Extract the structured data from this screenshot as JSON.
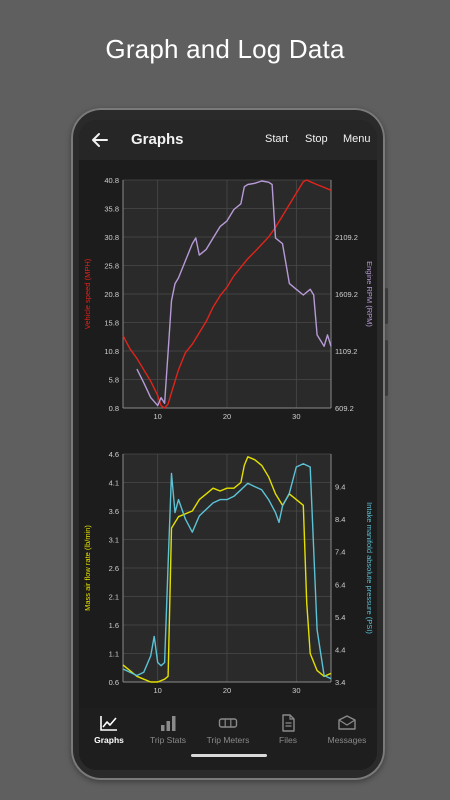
{
  "promo": {
    "title": "Graph and Log Data"
  },
  "appbar": {
    "title": "Graphs",
    "actions": [
      "Start",
      "Stop",
      "Menu"
    ]
  },
  "nav": {
    "items": [
      {
        "label": "Graphs",
        "icon": "line-graph-icon",
        "active": true
      },
      {
        "label": "Trip Stats",
        "icon": "bar-chart-icon",
        "active": false
      },
      {
        "label": "Trip Meters",
        "icon": "odometer-icon",
        "active": false
      },
      {
        "label": "Files",
        "icon": "file-icon",
        "active": false
      },
      {
        "label": "Messages",
        "icon": "message-icon",
        "active": false
      }
    ]
  },
  "colors": {
    "speed": "#e0241b",
    "rpm": "#b79ad6",
    "maf": "#e3e000",
    "map": "#5cc2d6",
    "grid": "#4a4a4a",
    "plot_bg": "#2a2a2a"
  },
  "chart_data": [
    {
      "type": "line",
      "x_ticks": [
        10,
        20,
        30
      ],
      "xlim": [
        5,
        35
      ],
      "grid": true,
      "y_left": {
        "label": "Vehicle speed (MPH)",
        "ticks": [
          "40.8",
          "35.8",
          "30.8",
          "25.8",
          "20.8",
          "15.8",
          "10.8",
          "5.8",
          "0.8"
        ],
        "range": [
          0.8,
          40.8
        ]
      },
      "y_right": {
        "label": "Engine RPM (RPM)",
        "ticks": [
          "2109.2",
          "1609.2",
          "1109.2",
          "609.2"
        ],
        "range": [
          609.2,
          2609.2
        ]
      },
      "series": [
        {
          "name": "Vehicle speed (MPH)",
          "axis": "left",
          "x": [
            5,
            6,
            7,
            8,
            9,
            10,
            10.5,
            11,
            11.5,
            12,
            13,
            14,
            15,
            16,
            17,
            18,
            19,
            20,
            21,
            22,
            23,
            24,
            25,
            26,
            27,
            28,
            29,
            30,
            31,
            31.5,
            32,
            33,
            34,
            35
          ],
          "y": [
            13.5,
            11.2,
            9.5,
            7.5,
            5.5,
            3.0,
            1.2,
            0.8,
            1.5,
            3.5,
            7.5,
            10.5,
            12.0,
            14.0,
            16.0,
            18.5,
            20.5,
            22.0,
            24.0,
            25.5,
            27.0,
            28.2,
            29.5,
            30.8,
            32.5,
            34.5,
            36.5,
            38.5,
            40.5,
            40.8,
            40.5,
            40.0,
            39.5,
            39.0
          ]
        },
        {
          "name": "Engine RPM (RPM)",
          "axis": "right",
          "x": [
            7,
            8,
            9,
            10,
            10.5,
            11,
            11.5,
            12,
            12.5,
            13,
            14,
            15,
            15.5,
            16,
            17,
            18,
            19,
            20,
            21,
            22,
            22.5,
            23,
            24,
            25,
            26,
            26.5,
            27,
            28,
            29,
            30,
            31,
            32,
            32.5,
            33,
            34,
            34.5,
            35
          ],
          "y": [
            950,
            830,
            700,
            630,
            700,
            650,
            1100,
            1550,
            1700,
            1750,
            1900,
            2050,
            2100,
            1950,
            2000,
            2100,
            2200,
            2250,
            2350,
            2400,
            2550,
            2570,
            2580,
            2600,
            2590,
            2570,
            2100,
            2050,
            1700,
            1650,
            1600,
            1650,
            1600,
            1250,
            1150,
            1250,
            1150
          ]
        }
      ]
    },
    {
      "type": "line",
      "x_ticks": [
        10,
        20,
        30
      ],
      "xlim": [
        5,
        35
      ],
      "grid": true,
      "y_left": {
        "label": "Mass air flow rate (lb/min)",
        "ticks": [
          "4.6",
          "4.1",
          "3.6",
          "3.1",
          "2.6",
          "2.1",
          "1.6",
          "1.1",
          "0.6"
        ],
        "range": [
          0.6,
          4.6
        ]
      },
      "y_right": {
        "label": "Intake manifold absolute pressure (PSI)",
        "ticks": [
          "9.4",
          "8.4",
          "7.4",
          "6.4",
          "5.4",
          "4.4",
          "3.4"
        ],
        "range": [
          3.4,
          10.4
        ]
      },
      "series": [
        {
          "name": "Mass air flow rate (lb/min)",
          "axis": "left",
          "x": [
            5,
            6,
            7,
            8,
            9,
            10,
            11,
            11.5,
            12,
            12.5,
            13,
            14,
            15,
            16,
            17,
            18,
            19,
            20,
            21,
            22,
            22.5,
            23,
            24,
            25,
            26,
            27,
            28,
            29,
            30,
            31,
            31.5,
            32,
            33,
            34,
            35
          ],
          "y": [
            0.9,
            0.8,
            0.7,
            0.65,
            0.6,
            0.6,
            0.65,
            0.7,
            3.3,
            3.4,
            3.5,
            3.55,
            3.6,
            3.8,
            3.9,
            4.0,
            3.95,
            4.0,
            4.0,
            4.1,
            4.4,
            4.55,
            4.5,
            4.4,
            4.2,
            3.9,
            3.7,
            3.9,
            3.8,
            3.7,
            2.0,
            1.1,
            0.8,
            0.7,
            0.75
          ]
        },
        {
          "name": "Intake manifold absolute pressure (PSI)",
          "axis": "right",
          "x": [
            5,
            6,
            7,
            8,
            9,
            9.5,
            10,
            10.5,
            11,
            11.5,
            12,
            12.5,
            13,
            14,
            15,
            16,
            17,
            18,
            19,
            20,
            21,
            22,
            23,
            24,
            25,
            26,
            27,
            27.5,
            28,
            29,
            30,
            31,
            32,
            33,
            34,
            35
          ],
          "y": [
            3.8,
            3.7,
            3.6,
            3.7,
            4.2,
            4.8,
            4.0,
            3.9,
            4.0,
            7.0,
            9.8,
            8.6,
            9.0,
            8.4,
            8.0,
            8.5,
            8.7,
            8.9,
            9.0,
            9.0,
            9.1,
            9.3,
            9.5,
            9.4,
            9.3,
            9.0,
            8.6,
            8.3,
            8.8,
            9.2,
            10.0,
            10.1,
            10.0,
            5.0,
            3.6,
            3.5
          ]
        }
      ]
    }
  ]
}
